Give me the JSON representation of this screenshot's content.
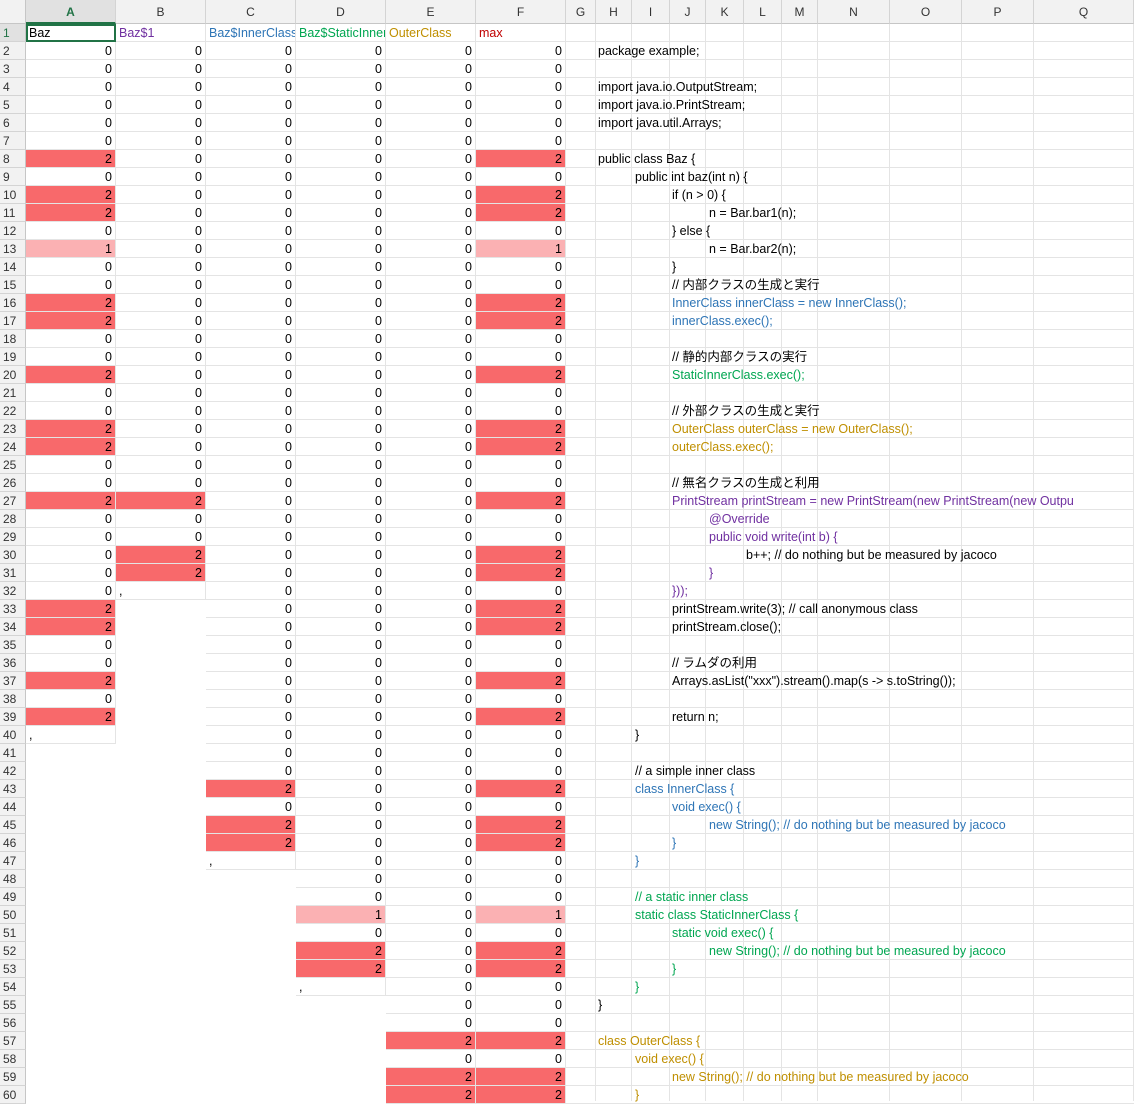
{
  "column_headers": [
    "A",
    "B",
    "C",
    "D",
    "E",
    "F",
    "G",
    "H",
    "I",
    "J",
    "K",
    "L",
    "M",
    "N",
    "O",
    "P",
    "Q"
  ],
  "selected_column": "A",
  "header_row": [
    {
      "col": "A",
      "text": "Baz",
      "color": "#000000"
    },
    {
      "col": "B",
      "text": "Baz$1",
      "color": "#7030a0"
    },
    {
      "col": "C",
      "text": "Baz$InnerClass",
      "color": "#2e75b6"
    },
    {
      "col": "D",
      "text": "Baz$StaticInnerClass",
      "color": "#00a651"
    },
    {
      "col": "E",
      "text": "OuterClass",
      "color": "#bf8f00"
    },
    {
      "col": "F",
      "text": "max",
      "color": "#c00000"
    }
  ],
  "colors": {
    "heat_dark": "#f8696b",
    "heat_light": "#fbb1b3",
    "default_text": "#000000",
    "inner_class": "#2e75b6",
    "static_inner": "#00a651",
    "outer_class": "#bf8f00",
    "anonymous": "#7030a0",
    "selection": "#217346"
  },
  "coverage": {
    "A": [
      0,
      0,
      0,
      0,
      0,
      0,
      2,
      0,
      2,
      2,
      0,
      1,
      0,
      0,
      2,
      2,
      0,
      0,
      2,
      0,
      0,
      2,
      2,
      0,
      0,
      2,
      0,
      0,
      0,
      0,
      0,
      2,
      2,
      0,
      0,
      2,
      0,
      2
    ],
    "B": [
      0,
      0,
      0,
      0,
      0,
      0,
      0,
      0,
      0,
      0,
      0,
      0,
      0,
      0,
      0,
      0,
      0,
      0,
      0,
      0,
      0,
      0,
      0,
      0,
      0,
      2,
      0,
      0,
      2,
      2
    ],
    "C": [
      0,
      0,
      0,
      0,
      0,
      0,
      0,
      0,
      0,
      0,
      0,
      0,
      0,
      0,
      0,
      0,
      0,
      0,
      0,
      0,
      0,
      0,
      0,
      0,
      0,
      0,
      0,
      0,
      0,
      0,
      0,
      0,
      0,
      0,
      0,
      0,
      0,
      0,
      0,
      0,
      0,
      2,
      0,
      2,
      2
    ],
    "D": [
      0,
      0,
      0,
      0,
      0,
      0,
      0,
      0,
      0,
      0,
      0,
      0,
      0,
      0,
      0,
      0,
      0,
      0,
      0,
      0,
      0,
      0,
      0,
      0,
      0,
      0,
      0,
      0,
      0,
      0,
      0,
      0,
      0,
      0,
      0,
      0,
      0,
      0,
      0,
      0,
      0,
      0,
      0,
      0,
      0,
      0,
      0,
      0,
      1,
      0,
      2,
      2
    ],
    "E": [
      0,
      0,
      0,
      0,
      0,
      0,
      0,
      0,
      0,
      0,
      0,
      0,
      0,
      0,
      0,
      0,
      0,
      0,
      0,
      0,
      0,
      0,
      0,
      0,
      0,
      0,
      0,
      0,
      0,
      0,
      0,
      0,
      0,
      0,
      0,
      0,
      0,
      0,
      0,
      0,
      0,
      0,
      0,
      0,
      0,
      0,
      0,
      0,
      0,
      0,
      0,
      0,
      0,
      0,
      0,
      2,
      0,
      2,
      2
    ],
    "F": [
      0,
      0,
      0,
      0,
      0,
      0,
      2,
      0,
      2,
      2,
      0,
      1,
      0,
      0,
      2,
      2,
      0,
      0,
      2,
      0,
      0,
      2,
      2,
      0,
      0,
      2,
      0,
      0,
      2,
      2,
      0,
      2,
      2,
      0,
      0,
      2,
      0,
      2,
      0,
      0,
      0,
      2,
      0,
      2,
      2,
      0,
      0,
      0,
      1,
      0,
      2,
      2,
      0,
      0,
      0,
      2,
      0,
      2,
      2
    ]
  },
  "end_markers": [
    {
      "col": "A",
      "row": 40,
      "text": ","
    },
    {
      "col": "B",
      "row": 32,
      "text": ","
    },
    {
      "col": "C",
      "row": 47,
      "text": ","
    },
    {
      "col": "D",
      "row": 54,
      "text": ","
    }
  ],
  "code_lines": [
    {
      "row": 2,
      "indent": 0,
      "text": "package example;",
      "color": "#000000"
    },
    {
      "row": 4,
      "indent": 0,
      "text": "import java.io.OutputStream;",
      "color": "#000000"
    },
    {
      "row": 5,
      "indent": 0,
      "text": "import java.io.PrintStream;",
      "color": "#000000"
    },
    {
      "row": 6,
      "indent": 0,
      "text": "import java.util.Arrays;",
      "color": "#000000"
    },
    {
      "row": 8,
      "indent": 0,
      "text": "public class Baz {",
      "color": "#000000"
    },
    {
      "row": 9,
      "indent": 1,
      "text": "public int baz(int n) {",
      "color": "#000000"
    },
    {
      "row": 10,
      "indent": 2,
      "text": "if (n > 0) {",
      "color": "#000000"
    },
    {
      "row": 11,
      "indent": 3,
      "text": "n = Bar.bar1(n);",
      "color": "#000000"
    },
    {
      "row": 12,
      "indent": 2,
      "text": "} else {",
      "color": "#000000"
    },
    {
      "row": 13,
      "indent": 3,
      "text": "n = Bar.bar2(n);",
      "color": "#000000"
    },
    {
      "row": 14,
      "indent": 2,
      "text": "}",
      "color": "#000000"
    },
    {
      "row": 15,
      "indent": 2,
      "text": "// 内部クラスの生成と実行",
      "color": "#000000"
    },
    {
      "row": 16,
      "indent": 2,
      "text": "InnerClass innerClass = new InnerClass();",
      "color": "#2e75b6"
    },
    {
      "row": 17,
      "indent": 2,
      "text": "innerClass.exec();",
      "color": "#2e75b6"
    },
    {
      "row": 19,
      "indent": 2,
      "text": "// 静的内部クラスの実行",
      "color": "#000000"
    },
    {
      "row": 20,
      "indent": 2,
      "text": "StaticInnerClass.exec();",
      "color": "#00a651"
    },
    {
      "row": 22,
      "indent": 2,
      "text": "// 外部クラスの生成と実行",
      "color": "#000000"
    },
    {
      "row": 23,
      "indent": 2,
      "text": "OuterClass outerClass = new OuterClass();",
      "color": "#bf8f00"
    },
    {
      "row": 24,
      "indent": 2,
      "text": "outerClass.exec();",
      "color": "#bf8f00"
    },
    {
      "row": 26,
      "indent": 2,
      "text": "// 無名クラスの生成と利用",
      "color": "#000000"
    },
    {
      "row": 27,
      "indent": 2,
      "text": "PrintStream printStream = new PrintStream(new PrintStream(new Outpu",
      "color": "#7030a0"
    },
    {
      "row": 28,
      "indent": 3,
      "text": "@Override",
      "color": "#7030a0"
    },
    {
      "row": 29,
      "indent": 3,
      "text": "public void write(int b) {",
      "color": "#7030a0"
    },
    {
      "row": 30,
      "indent": 4,
      "text": "b++; // do nothing but be measured by jacoco",
      "color": "#000000"
    },
    {
      "row": 31,
      "indent": 3,
      "text": "}",
      "color": "#7030a0"
    },
    {
      "row": 32,
      "indent": 2,
      "text": "}));",
      "color": "#7030a0"
    },
    {
      "row": 33,
      "indent": 2,
      "text": "printStream.write(3); // call anonymous class",
      "color": "#000000"
    },
    {
      "row": 34,
      "indent": 2,
      "text": "printStream.close();",
      "color": "#000000"
    },
    {
      "row": 36,
      "indent": 2,
      "text": "// ラムダの利用",
      "color": "#000000"
    },
    {
      "row": 37,
      "indent": 2,
      "text": "Arrays.asList(\"xxx\").stream().map(s -> s.toString());",
      "color": "#000000"
    },
    {
      "row": 39,
      "indent": 2,
      "text": "return n;",
      "color": "#000000"
    },
    {
      "row": 40,
      "indent": 1,
      "text": "}",
      "color": "#000000"
    },
    {
      "row": 42,
      "indent": 1,
      "text": "// a simple inner class",
      "color": "#000000"
    },
    {
      "row": 43,
      "indent": 1,
      "text": "class InnerClass {",
      "color": "#2e75b6"
    },
    {
      "row": 44,
      "indent": 2,
      "text": "void exec() {",
      "color": "#2e75b6"
    },
    {
      "row": 45,
      "indent": 3,
      "text": "new String(); // do nothing but be measured by jacoco",
      "color": "#2e75b6"
    },
    {
      "row": 46,
      "indent": 2,
      "text": "}",
      "color": "#2e75b6"
    },
    {
      "row": 47,
      "indent": 1,
      "text": "}",
      "color": "#2e75b6"
    },
    {
      "row": 49,
      "indent": 1,
      "text": "// a static inner class",
      "color": "#00a651"
    },
    {
      "row": 50,
      "indent": 1,
      "text": "static class StaticInnerClass {",
      "color": "#00a651"
    },
    {
      "row": 51,
      "indent": 2,
      "text": "static void exec() {",
      "color": "#00a651"
    },
    {
      "row": 52,
      "indent": 3,
      "text": "new String(); // do nothing but be measured by jacoco",
      "color": "#00a651"
    },
    {
      "row": 53,
      "indent": 2,
      "text": "}",
      "color": "#00a651"
    },
    {
      "row": 54,
      "indent": 1,
      "text": "}",
      "color": "#00a651"
    },
    {
      "row": 55,
      "indent": 0,
      "text": "}",
      "color": "#000000"
    },
    {
      "row": 57,
      "indent": 0,
      "text": "class OuterClass {",
      "color": "#bf8f00"
    },
    {
      "row": 58,
      "indent": 1,
      "text": "void exec() {",
      "color": "#bf8f00"
    },
    {
      "row": 59,
      "indent": 2,
      "text": "new String(); // do nothing but be measured by jacoco",
      "color": "#bf8f00"
    },
    {
      "row": 60,
      "indent": 1,
      "text": "}",
      "color": "#bf8f00"
    }
  ],
  "row_numbers": [
    1,
    2,
    3,
    4,
    5,
    6,
    7,
    8,
    9,
    10,
    11,
    12,
    13,
    14,
    15,
    16,
    17,
    18,
    19,
    20,
    21,
    22,
    23,
    24,
    25,
    26,
    27,
    28,
    29,
    30,
    31,
    32,
    33,
    34,
    35,
    36,
    37,
    38,
    39,
    40,
    41,
    42,
    43,
    44,
    45,
    46,
    47,
    48,
    49,
    50,
    51,
    52,
    53,
    54,
    55,
    56,
    57,
    58,
    59,
    60
  ]
}
